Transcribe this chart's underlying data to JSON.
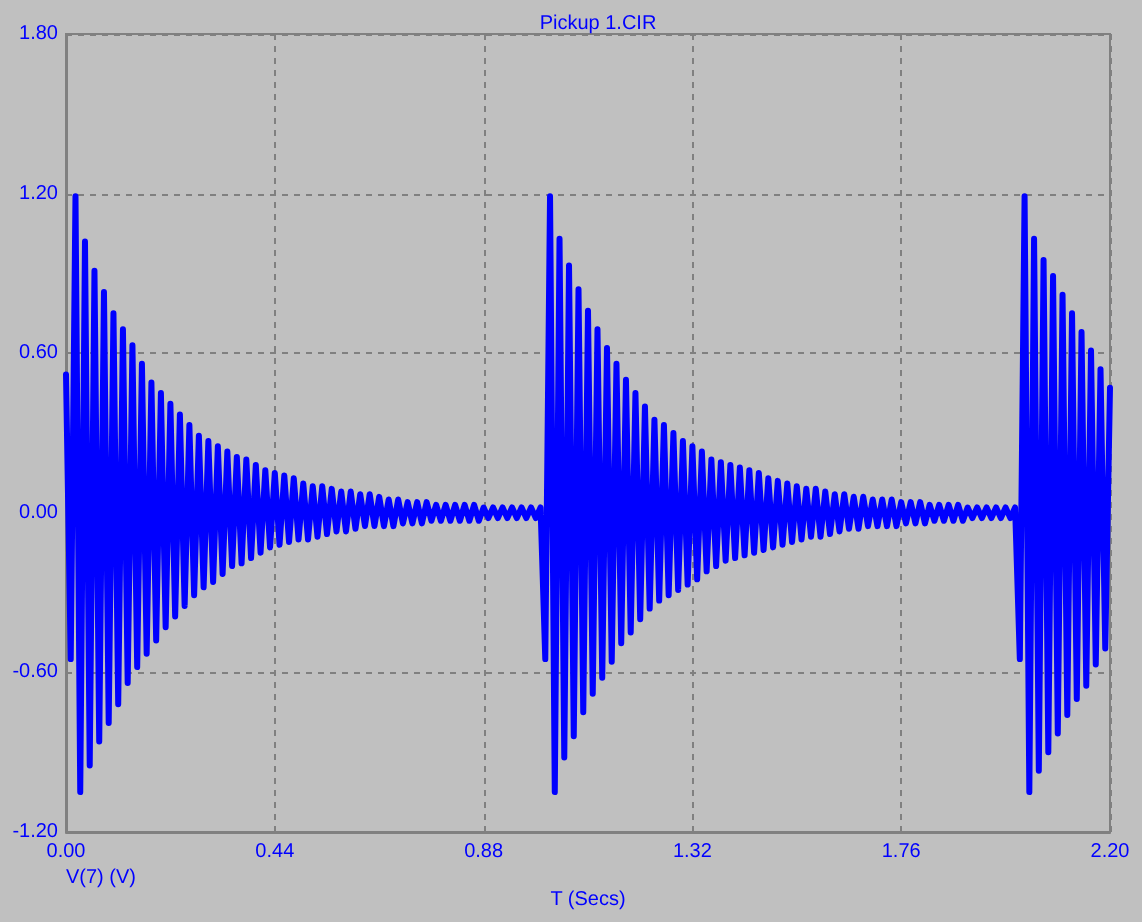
{
  "chart_data": {
    "type": "line",
    "title": "Pickup 1.CIR",
    "xlabel": "T (Secs)",
    "marker": "none",
    "grid": true,
    "legend": "bottom left",
    "xlim": [
      0,
      2.2
    ],
    "xticks": [
      {
        "value": 0,
        "label": "0.00"
      },
      0.44,
      0.88,
      1.32,
      1.76,
      {
        "value": 2.2,
        "label": "2.20"
      }
    ],
    "ylim": [
      -1.2,
      1.8
    ],
    "yticks": [
      {
        "value": -1.2,
        "label": "-1.20"
      },
      {
        "value": -0.6,
        "label": "-0.60"
      },
      {
        "value": 0,
        "label": "0.00"
      },
      {
        "value": 0.6,
        "label": "0.60"
      },
      {
        "value": 1.2,
        "label": "1.20"
      },
      {
        "value": 1.8,
        "label": "1.80"
      }
    ],
    "x": [
      0,
      0.01,
      0.02,
      0.03,
      0.04,
      0.05,
      0.06,
      0.07,
      0.08,
      0.09,
      0.1,
      0.11,
      0.12,
      0.13,
      0.14,
      0.15,
      0.16,
      0.17,
      0.18,
      0.19,
      0.2,
      0.21,
      0.22,
      0.23,
      0.24,
      0.25,
      0.26,
      0.27,
      0.28,
      0.29,
      0.3,
      0.31,
      0.32,
      0.33,
      0.34,
      0.35,
      0.36,
      0.37,
      0.38,
      0.39,
      0.4,
      0.41,
      0.42,
      0.43,
      0.44,
      0.45,
      0.46,
      0.47,
      0.48,
      0.49,
      0.5,
      0.51,
      0.52,
      0.53,
      0.54,
      0.55,
      0.56,
      0.57,
      0.58,
      0.59,
      0.6,
      0.61,
      0.62,
      0.63,
      0.64,
      0.65,
      0.66,
      0.67,
      0.68,
      0.69,
      0.7,
      0.71,
      0.72,
      0.73,
      0.74,
      0.75,
      0.76,
      0.77,
      0.78,
      0.79,
      0.8,
      0.81,
      0.82,
      0.83,
      0.84,
      0.85,
      0.86,
      0.87,
      0.88,
      0.89,
      0.9,
      0.91,
      0.92,
      0.93,
      0.94,
      0.95,
      0.96,
      0.97,
      0.98,
      0.99,
      1,
      1.01,
      1.02,
      1.03,
      1.04,
      1.05,
      1.06,
      1.07,
      1.08,
      1.09,
      1.1,
      1.11,
      1.12,
      1.13,
      1.14,
      1.15,
      1.16,
      1.17,
      1.18,
      1.19,
      1.2,
      1.21,
      1.22,
      1.23,
      1.24,
      1.25,
      1.26,
      1.27,
      1.28,
      1.29,
      1.3,
      1.31,
      1.32,
      1.33,
      1.34,
      1.35,
      1.36,
      1.37,
      1.38,
      1.39,
      1.4,
      1.41,
      1.42,
      1.43,
      1.44,
      1.45,
      1.46,
      1.47,
      1.48,
      1.49,
      1.5,
      1.51,
      1.52,
      1.53,
      1.54,
      1.55,
      1.56,
      1.57,
      1.58,
      1.59,
      1.6,
      1.61,
      1.62,
      1.63,
      1.64,
      1.65,
      1.66,
      1.67,
      1.68,
      1.69,
      1.7,
      1.71,
      1.72,
      1.73,
      1.74,
      1.75,
      1.76,
      1.77,
      1.78,
      1.79,
      1.8,
      1.81,
      1.82,
      1.83,
      1.84,
      1.85,
      1.86,
      1.87,
      1.88,
      1.89,
      1.9,
      1.91,
      1.92,
      1.93,
      1.94,
      1.95,
      1.96,
      1.97,
      1.98,
      1.99,
      2,
      2.01,
      2.02,
      2.03,
      2.04,
      2.05,
      2.06,
      2.07,
      2.08,
      2.09,
      2.1,
      2.11,
      2.12,
      2.13,
      2.14,
      2.15,
      2.16,
      2.17,
      2.18,
      2.19,
      2.2
    ],
    "series": [
      {
        "name": "V(7) (V)",
        "color": "#0000ff",
        "values": [
          0.52,
          -0.55,
          1.19,
          -1.05,
          1.02,
          -0.95,
          0.91,
          -0.86,
          0.83,
          -0.79,
          0.75,
          -0.72,
          0.69,
          -0.64,
          0.63,
          -0.58,
          0.56,
          -0.53,
          0.49,
          -0.48,
          0.45,
          -0.43,
          0.41,
          -0.39,
          0.37,
          -0.35,
          0.33,
          -0.31,
          0.29,
          -0.28,
          0.27,
          -0.26,
          0.25,
          -0.23,
          0.23,
          -0.2,
          0.21,
          -0.19,
          0.2,
          -0.17,
          0.18,
          -0.15,
          0.16,
          -0.13,
          0.15,
          -0.12,
          0.14,
          -0.11,
          0.13,
          -0.1,
          0.11,
          -0.1,
          0.1,
          -0.09,
          0.1,
          -0.08,
          0.09,
          -0.07,
          0.08,
          -0.07,
          0.08,
          -0.06,
          0.07,
          -0.05,
          0.07,
          -0.05,
          0.06,
          -0.05,
          0.05,
          -0.05,
          0.05,
          -0.04,
          0.04,
          -0.04,
          0.04,
          -0.04,
          0.04,
          -0.03,
          0.03,
          -0.03,
          0.03,
          -0.03,
          0.03,
          -0.03,
          0.03,
          -0.03,
          0.03,
          -0.03,
          0.02,
          -0.02,
          0.02,
          -0.02,
          0.02,
          -0.02,
          0.02,
          -0.02,
          0.02,
          -0.02,
          0.02,
          -0.02,
          0.02,
          -0.55,
          1.19,
          -1.05,
          1.03,
          -0.92,
          0.93,
          -0.84,
          0.84,
          -0.75,
          0.76,
          -0.68,
          0.69,
          -0.62,
          0.62,
          -0.56,
          0.56,
          -0.49,
          0.5,
          -0.45,
          0.45,
          -0.4,
          0.4,
          -0.36,
          0.35,
          -0.33,
          0.33,
          -0.31,
          0.3,
          -0.29,
          0.27,
          -0.27,
          0.25,
          -0.25,
          0.23,
          -0.22,
          0.2,
          -0.2,
          0.19,
          -0.18,
          0.18,
          -0.17,
          0.17,
          -0.16,
          0.16,
          -0.15,
          0.15,
          -0.14,
          0.13,
          -0.13,
          0.12,
          -0.12,
          0.11,
          -0.11,
          0.1,
          -0.1,
          0.09,
          -0.09,
          0.09,
          -0.09,
          0.08,
          -0.08,
          0.07,
          -0.07,
          0.07,
          -0.06,
          0.06,
          -0.06,
          0.06,
          -0.05,
          0.05,
          -0.05,
          0.05,
          -0.05,
          0.05,
          -0.05,
          0.04,
          -0.04,
          0.04,
          -0.04,
          0.04,
          -0.04,
          0.03,
          -0.03,
          0.03,
          -0.03,
          0.03,
          -0.03,
          0.03,
          -0.03,
          0.02,
          -0.02,
          0.02,
          -0.02,
          0.02,
          -0.02,
          0.02,
          -0.02,
          0.02,
          -0.02,
          0.02,
          -0.55,
          1.19,
          -1.05,
          1.03,
          -0.97,
          0.95,
          -0.9,
          0.89,
          -0.83,
          0.82,
          -0.76,
          0.75,
          -0.7,
          0.68,
          -0.65,
          0.61,
          -0.57,
          0.54,
          -0.51,
          0.47
        ]
      }
    ]
  }
}
